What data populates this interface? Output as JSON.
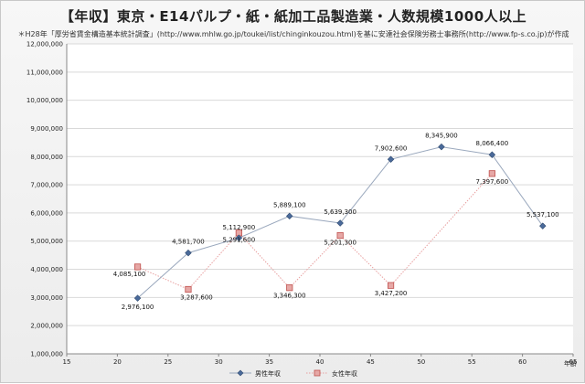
{
  "header": {
    "title": "【年収】東京・E14パルプ・紙・紙加工品製造業・人数規模1000人以上",
    "subtitle": "＊H28年「厚労省賃金構造基本統計調査」(http://www.mhlw.go.jp/toukei/list/chinginkouzou.html)を基に安達社会保険労務士事務所(http://www.fp-s.co.jp)が作成"
  },
  "chart_data": {
    "type": "line",
    "title": "【年収】東京・E14パルプ・紙・紙加工品製造業・人数規模1000人以上",
    "xlabel": "年齢",
    "ylabel": "",
    "xlim": [
      15,
      65
    ],
    "ylim": [
      1000000,
      12000000
    ],
    "x_ticks": [
      15,
      20,
      25,
      30,
      35,
      40,
      45,
      50,
      55,
      60,
      65
    ],
    "y_ticks": [
      1000000,
      2000000,
      3000000,
      4000000,
      5000000,
      6000000,
      7000000,
      8000000,
      9000000,
      10000000,
      11000000,
      12000000
    ],
    "y_tick_labels": [
      "1,000,000",
      "2,000,000",
      "3,000,000",
      "4,000,000",
      "5,000,000",
      "6,000,000",
      "7,000,000",
      "8,000,000",
      "9,000,000",
      "10,000,000",
      "11,000,000",
      "12,000,000"
    ],
    "grid": true,
    "legend_position": "bottom",
    "series": [
      {
        "name": "男性年収",
        "color": "#4a6a9a",
        "marker": "diamond",
        "line": "solid",
        "x": [
          22,
          27,
          32,
          37,
          42,
          47,
          52,
          57,
          62
        ],
        "values": [
          2976100,
          4581700,
          5112900,
          5889100,
          5639300,
          7902600,
          8345900,
          8066400,
          5537100
        ],
        "labels": [
          "2,976,100",
          "4,581,700",
          "5,112,900",
          "5,889,100",
          "5,639,300",
          "7,902,600",
          "8,345,900",
          "8,066,400",
          "5,537,100"
        ]
      },
      {
        "name": "女性年収",
        "color": "#c0504d",
        "marker": "square",
        "line": "dotted",
        "x": [
          22,
          27,
          32,
          37,
          42,
          47,
          57
        ],
        "values": [
          4085100,
          3287600,
          5291600,
          3346300,
          5201300,
          3427200,
          7397600
        ],
        "labels": [
          "4,085,100",
          "3,287,600",
          "5,291,600",
          "3,346,300",
          "5,201,300",
          "3,427,200",
          "7,397,600"
        ]
      }
    ]
  }
}
